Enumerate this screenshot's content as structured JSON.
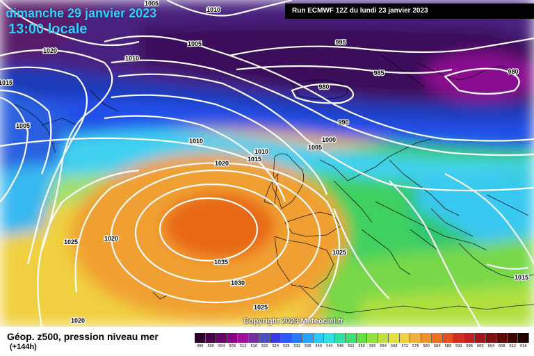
{
  "title": {
    "date": "dimanche 29 janvier 2023",
    "time": "13:00 locale"
  },
  "run_label": "Run ECMWF 12Z du lundi 23 janvier 2023",
  "copyright": "Copyright 2023 Meteociel.fr",
  "product": {
    "title": "Géop. z500, pression niveau mer",
    "lead": "(+144h)"
  },
  "isobar_labels": [
    "1005",
    "1010",
    "1020",
    "1015",
    "1010",
    "1005",
    "1005",
    "995",
    "985",
    "980",
    "980",
    "990",
    "1000",
    "1005",
    "1010",
    "1010",
    "1015",
    "1020",
    "1025",
    "1020",
    "1035",
    "1030",
    "1025",
    "1025",
    "1020",
    "1015"
  ],
  "colors": {
    "very_low": "#5a0a5a",
    "low": "#5a1a88",
    "blue": "#1b4de0",
    "cyan": "#33c8ff",
    "green": "#33cc55",
    "yellow": "#f2e64a",
    "orange": "#f29a1a",
    "deep_orange": "#e8621a",
    "isobar": "#ffffff"
  },
  "legend_scale": {
    "values": [
      "496",
      "500",
      "504",
      "508",
      "512",
      "516",
      "520",
      "524",
      "528",
      "532",
      "536",
      "540",
      "544",
      "548",
      "552",
      "556",
      "560",
      "564",
      "568",
      "572",
      "576",
      "580",
      "584",
      "588",
      "592",
      "596",
      "600",
      "604",
      "608",
      "612",
      "616"
    ],
    "colors": [
      "#2a002a",
      "#4a004a",
      "#6a006a",
      "#8a008a",
      "#a010a0",
      "#7030a0",
      "#5050c0",
      "#3a3ae0",
      "#2a5aff",
      "#2a7aff",
      "#2aa0ff",
      "#2ac8ff",
      "#30e0e0",
      "#30e0a0",
      "#40e070",
      "#60e040",
      "#90e040",
      "#c0e040",
      "#e0e040",
      "#f0d040",
      "#f0b040",
      "#f09030",
      "#f07020",
      "#e05020",
      "#d03020",
      "#c02020",
      "#a01818",
      "#801010",
      "#600808",
      "#400404",
      "#200000"
    ]
  }
}
